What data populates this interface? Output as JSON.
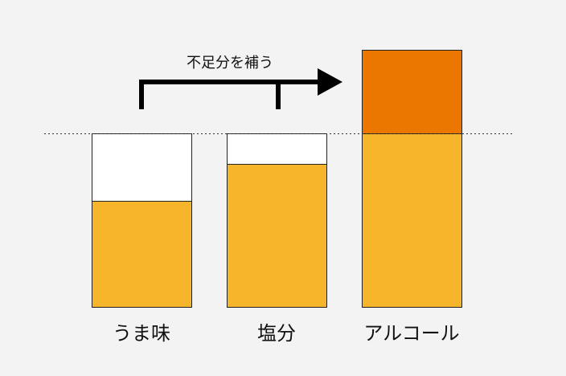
{
  "annotation": "不足分を補う",
  "labels": [
    "うま味",
    "塩分",
    "アルコール"
  ]
}
